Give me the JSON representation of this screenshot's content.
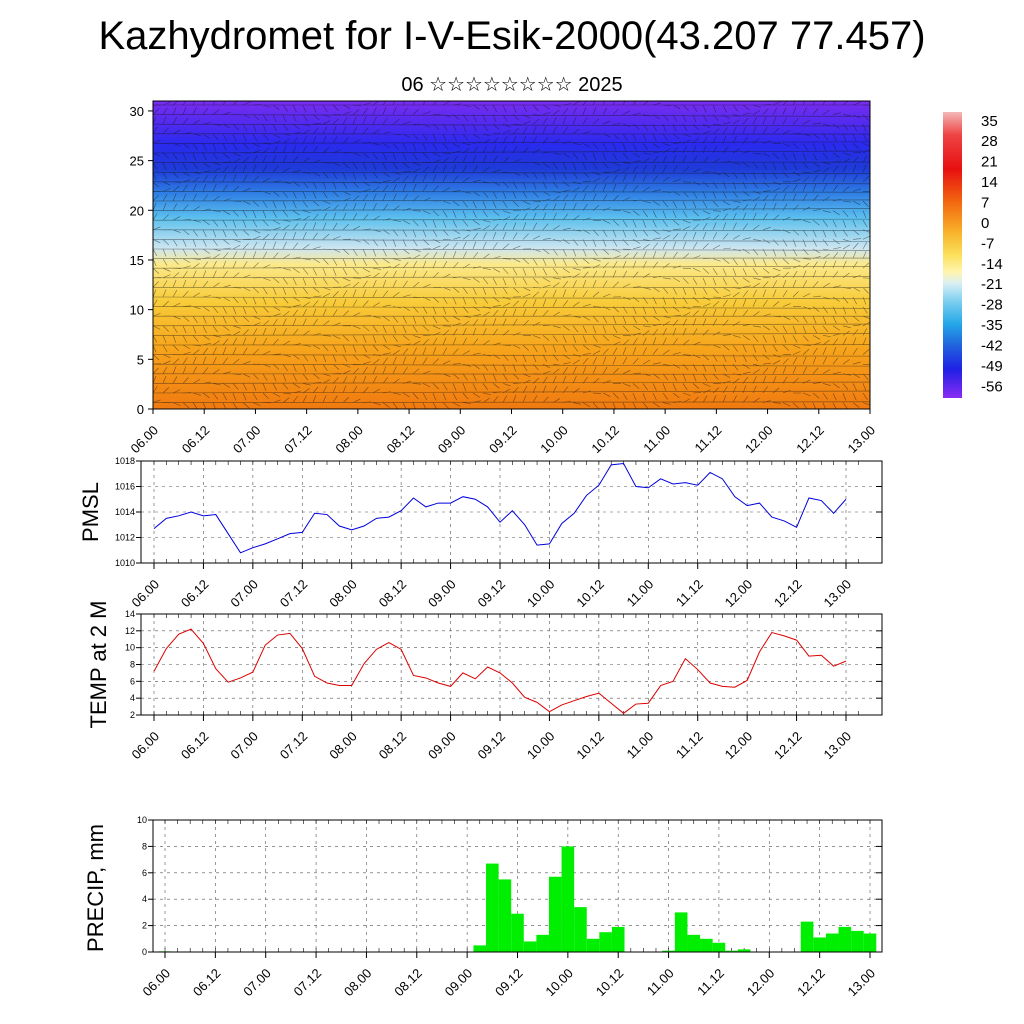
{
  "title": "Kazhydromet for I-V-Esik-2000(43.207 77.457)",
  "subtitle": "06 ☆☆☆☆☆☆☆☆ 2025",
  "colors": {
    "pmsl_line": "#0000dd",
    "temp_line": "#dd0000",
    "precip_bar": "#00ee00",
    "grid": "#555555"
  },
  "chart_data": [
    {
      "type": "heatmap",
      "name": "cross-section",
      "x_ticks": [
        "06.00",
        "06.12",
        "07.00",
        "07.12",
        "08.00",
        "08.12",
        "09.00",
        "09.12",
        "10.00",
        "10.12",
        "11.00",
        "11.12",
        "12.00",
        "12.12",
        "13.00"
      ],
      "y_ticks": [
        "0",
        "5",
        "10",
        "15",
        "20",
        "25",
        "30"
      ],
      "ylim": [
        0,
        31
      ],
      "colorbar_labels": [
        "35",
        "28",
        "21",
        "14",
        "7",
        "0",
        "-7",
        "-14",
        "-21",
        "-28",
        "-35",
        "-42",
        "-49",
        "-56"
      ],
      "colorbar_range": [
        -60,
        38
      ]
    },
    {
      "type": "line",
      "name": "pmsl",
      "ylabel": "PMSL",
      "x_ticks": [
        "06.00",
        "06.12",
        "07.00",
        "07.12",
        "08.00",
        "08.12",
        "09.00",
        "09.12",
        "10.00",
        "10.12",
        "11.00",
        "11.12",
        "12.00",
        "12.12",
        "13.00"
      ],
      "y_ticks": [
        "1010",
        "1012",
        "1014",
        "1016",
        "1018"
      ],
      "ylim": [
        1010,
        1018
      ],
      "values": [
        1012.7,
        1013.5,
        1013.7,
        1014.0,
        1013.7,
        1013.8,
        1012.3,
        1010.8,
        1011.2,
        1011.5,
        1011.9,
        1012.3,
        1012.4,
        1013.9,
        1013.8,
        1012.9,
        1012.6,
        1012.9,
        1013.5,
        1013.6,
        1014.1,
        1015.1,
        1014.4,
        1014.7,
        1014.7,
        1015.2,
        1015.0,
        1014.4,
        1013.2,
        1014.1,
        1013.0,
        1011.4,
        1011.5,
        1013.1,
        1013.9,
        1015.3,
        1016.1,
        1017.7,
        1017.8,
        1016.0,
        1015.9,
        1016.6,
        1016.2,
        1016.3,
        1016.1,
        1017.1,
        1016.6,
        1015.2,
        1014.5,
        1014.7,
        1013.6,
        1013.3,
        1012.8,
        1015.1,
        1014.9,
        1013.9,
        1015.0
      ]
    },
    {
      "type": "line",
      "name": "temp",
      "ylabel": "TEMP at 2 M",
      "x_ticks": [
        "06.00",
        "06.12",
        "07.00",
        "07.12",
        "08.00",
        "08.12",
        "09.00",
        "09.12",
        "10.00",
        "10.12",
        "11.00",
        "11.12",
        "12.00",
        "12.12",
        "13.00"
      ],
      "y_ticks": [
        "2",
        "4",
        "6",
        "8",
        "10",
        "12",
        "14"
      ],
      "ylim": [
        2,
        14
      ],
      "values": [
        7.2,
        9.9,
        11.6,
        12.2,
        10.5,
        7.5,
        5.9,
        6.4,
        7.1,
        10.3,
        11.5,
        11.7,
        9.9,
        6.6,
        5.8,
        5.5,
        5.5,
        8.1,
        9.8,
        10.6,
        9.8,
        6.7,
        6.4,
        5.8,
        5.4,
        7.0,
        6.3,
        7.7,
        7.0,
        5.8,
        4.1,
        3.5,
        2.4,
        3.2,
        3.7,
        4.2,
        4.6,
        3.4,
        2.2,
        3.3,
        3.4,
        5.5,
        6.0,
        8.7,
        7.4,
        5.8,
        5.4,
        5.3,
        6.1,
        9.5,
        11.8,
        11.4,
        10.9,
        9.0,
        9.1,
        7.8,
        8.4
      ]
    },
    {
      "type": "bar",
      "name": "precip",
      "ylabel": "PRECIP, mm",
      "x_ticks": [
        "06.00",
        "06.12",
        "07.00",
        "07.12",
        "08.00",
        "08.12",
        "09.00",
        "09.12",
        "10.00",
        "10.12",
        "11.00",
        "11.12",
        "12.00",
        "12.12",
        "13.00"
      ],
      "y_ticks": [
        "0",
        "2",
        "4",
        "6",
        "8",
        "10"
      ],
      "ylim": [
        0,
        10
      ],
      "values": [
        0.05,
        0,
        0,
        0,
        0,
        0,
        0,
        0,
        0,
        0,
        0,
        0,
        0,
        0,
        0,
        0,
        0,
        0,
        0,
        0,
        0,
        0,
        0,
        0,
        0,
        0.5,
        6.7,
        5.5,
        2.9,
        0.8,
        1.3,
        5.7,
        8.0,
        3.4,
        1.0,
        1.5,
        1.9,
        0,
        0,
        0,
        0.1,
        3.0,
        1.3,
        1.0,
        0.7,
        0.1,
        0.2,
        0,
        0,
        0,
        0,
        2.3,
        1.1,
        1.4,
        1.9,
        1.6,
        1.4
      ]
    }
  ]
}
